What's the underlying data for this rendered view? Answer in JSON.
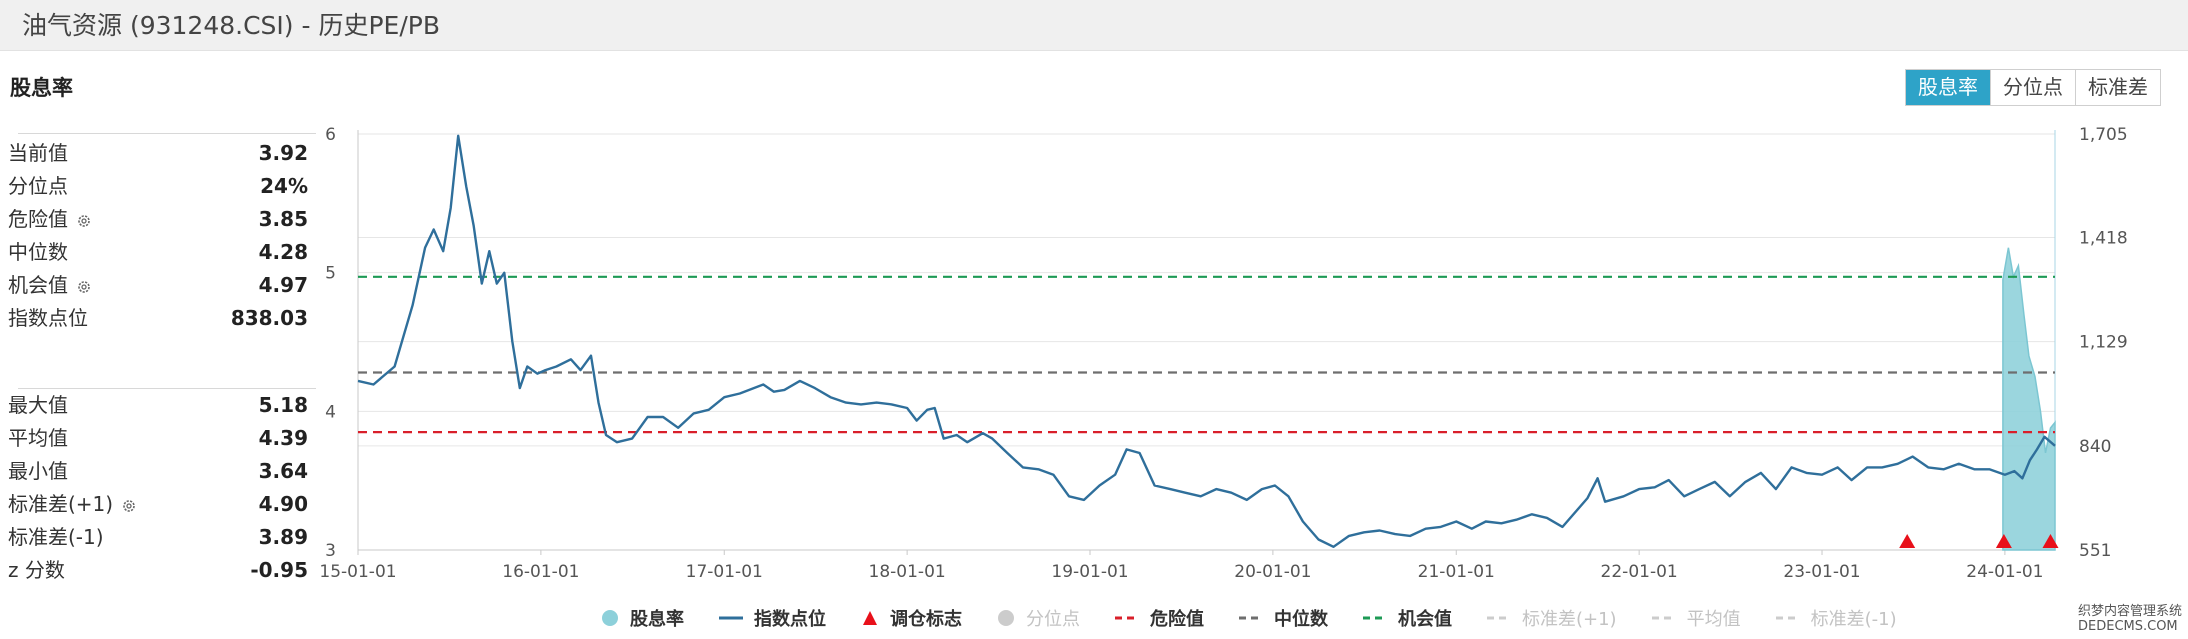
{
  "header": {
    "title": "油气资源 (931248.CSI) - 历史PE/PB"
  },
  "panel": {
    "title": "股息率",
    "metrics_top": [
      {
        "label": "当前值",
        "value": "3.92",
        "gear": false
      },
      {
        "label": "分位点",
        "value": "24%",
        "gear": false
      },
      {
        "label": "危险值",
        "value": "3.85",
        "gear": true
      },
      {
        "label": "中位数",
        "value": "4.28",
        "gear": false
      },
      {
        "label": "机会值",
        "value": "4.97",
        "gear": true
      },
      {
        "label": "指数点位",
        "value": "838.03",
        "gear": false
      }
    ],
    "metrics_bottom": [
      {
        "label": "最大值",
        "value": "5.18",
        "gear": false
      },
      {
        "label": "平均值",
        "value": "4.39",
        "gear": false
      },
      {
        "label": "最小值",
        "value": "3.64",
        "gear": false
      },
      {
        "label": "标准差(+1)",
        "value": "4.90",
        "gear": true
      },
      {
        "label": "标准差(-1)",
        "value": "3.89",
        "gear": false
      },
      {
        "label": "z 分数",
        "value": "-0.95",
        "gear": false
      }
    ]
  },
  "tabs": [
    {
      "label": "股息率",
      "active": true
    },
    {
      "label": "分位点",
      "active": false
    },
    {
      "label": "标准差",
      "active": false
    }
  ],
  "legend": [
    {
      "label": "股息率",
      "marker": "circle",
      "color": "#8dd0da",
      "active": true
    },
    {
      "label": "指数点位",
      "marker": "line",
      "color": "#2f6f9b",
      "active": true
    },
    {
      "label": "调仓标志",
      "marker": "triangle",
      "color": "#e8101a",
      "active": true
    },
    {
      "label": "分位点",
      "marker": "circle",
      "color": "#cccccc",
      "active": false
    },
    {
      "label": "危险值",
      "marker": "dash",
      "color": "#d91f2a",
      "active": true
    },
    {
      "label": "中位数",
      "marker": "dash",
      "color": "#6e6e6e",
      "active": true
    },
    {
      "label": "机会值",
      "marker": "dash",
      "color": "#1d9a55",
      "active": true
    },
    {
      "label": "标准差(+1)",
      "marker": "dash",
      "color": "#cccccc",
      "active": false
    },
    {
      "label": "平均值",
      "marker": "dash",
      "color": "#cccccc",
      "active": false
    },
    {
      "label": "标准差(-1)",
      "marker": "dash",
      "color": "#cccccc",
      "active": false
    }
  ],
  "watermark": {
    "line1": "织梦内容管理系统",
    "line2": "DEDECMS.COM"
  },
  "chart_data": {
    "type": "line",
    "x_axis": {
      "range": [
        "2015-01-01",
        "2024-04-10"
      ],
      "ticks": [
        "15-01-01",
        "16-01-01",
        "17-01-01",
        "18-01-01",
        "19-01-01",
        "20-01-01",
        "21-01-01",
        "22-01-01",
        "23-01-01",
        "24-01-01"
      ]
    },
    "y_left": {
      "range": [
        3,
        6
      ],
      "ticks": [
        "3",
        "4",
        "5",
        "6"
      ]
    },
    "y_right": {
      "range": [
        551,
        1705
      ],
      "ticks": [
        "551",
        "840",
        "1,129",
        "1,418",
        "1,705"
      ]
    },
    "grid": true,
    "reference_lines": [
      {
        "name": "危险值",
        "value": 3.85,
        "color": "#d91f2a"
      },
      {
        "name": "中位数",
        "value": 4.28,
        "color": "#6e6e6e"
      },
      {
        "name": "机会值",
        "value": 4.97,
        "color": "#1d9a55"
      }
    ],
    "series": [
      {
        "name": "指数点位",
        "axis": "right",
        "color": "#2f6f9b",
        "points": [
          [
            "2015-01-01",
            1020
          ],
          [
            "2015-02-01",
            1010
          ],
          [
            "2015-03-15",
            1060
          ],
          [
            "2015-04-20",
            1230
          ],
          [
            "2015-05-15",
            1390
          ],
          [
            "2015-06-01",
            1440
          ],
          [
            "2015-06-20",
            1380
          ],
          [
            "2015-07-05",
            1500
          ],
          [
            "2015-07-20",
            1700
          ],
          [
            "2015-08-05",
            1560
          ],
          [
            "2015-08-20",
            1450
          ],
          [
            "2015-09-05",
            1290
          ],
          [
            "2015-09-20",
            1380
          ],
          [
            "2015-10-05",
            1290
          ],
          [
            "2015-10-20",
            1320
          ],
          [
            "2015-11-05",
            1130
          ],
          [
            "2015-11-20",
            1000
          ],
          [
            "2015-12-05",
            1060
          ],
          [
            "2015-12-25",
            1040
          ],
          [
            "2016-01-10",
            1050
          ],
          [
            "2016-02-01",
            1060
          ],
          [
            "2016-03-01",
            1080
          ],
          [
            "2016-03-20",
            1050
          ],
          [
            "2016-04-10",
            1090
          ],
          [
            "2016-04-25",
            960
          ],
          [
            "2016-05-10",
            870
          ],
          [
            "2016-06-01",
            850
          ],
          [
            "2016-07-01",
            860
          ],
          [
            "2016-08-01",
            920
          ],
          [
            "2016-09-01",
            920
          ],
          [
            "2016-10-01",
            890
          ],
          [
            "2016-11-01",
            930
          ],
          [
            "2016-12-01",
            940
          ],
          [
            "2017-01-01",
            975
          ],
          [
            "2017-02-01",
            985
          ],
          [
            "2017-03-01",
            1000
          ],
          [
            "2017-03-20",
            1010
          ],
          [
            "2017-04-10",
            990
          ],
          [
            "2017-05-01",
            995
          ],
          [
            "2017-06-01",
            1020
          ],
          [
            "2017-07-01",
            1000
          ],
          [
            "2017-08-01",
            975
          ],
          [
            "2017-09-01",
            960
          ],
          [
            "2017-10-01",
            955
          ],
          [
            "2017-11-01",
            960
          ],
          [
            "2017-12-01",
            955
          ],
          [
            "2018-01-01",
            945
          ],
          [
            "2018-01-20",
            910
          ],
          [
            "2018-02-10",
            940
          ],
          [
            "2018-02-25",
            945
          ],
          [
            "2018-03-15",
            860
          ],
          [
            "2018-04-10",
            870
          ],
          [
            "2018-05-01",
            850
          ],
          [
            "2018-06-01",
            875
          ],
          [
            "2018-06-20",
            860
          ],
          [
            "2018-07-20",
            820
          ],
          [
            "2018-08-20",
            780
          ],
          [
            "2018-09-20",
            775
          ],
          [
            "2018-10-20",
            760
          ],
          [
            "2018-11-20",
            700
          ],
          [
            "2018-12-20",
            690
          ],
          [
            "2019-01-20",
            730
          ],
          [
            "2019-02-20",
            760
          ],
          [
            "2019-03-15",
            830
          ],
          [
            "2019-04-10",
            820
          ],
          [
            "2019-05-10",
            730
          ],
          [
            "2019-06-10",
            720
          ],
          [
            "2019-07-10",
            710
          ],
          [
            "2019-08-10",
            700
          ],
          [
            "2019-09-10",
            720
          ],
          [
            "2019-10-10",
            710
          ],
          [
            "2019-11-10",
            690
          ],
          [
            "2019-12-10",
            720
          ],
          [
            "2020-01-05",
            730
          ],
          [
            "2020-02-01",
            700
          ],
          [
            "2020-03-01",
            630
          ],
          [
            "2020-04-01",
            580
          ],
          [
            "2020-05-01",
            560
          ],
          [
            "2020-06-01",
            590
          ],
          [
            "2020-07-01",
            600
          ],
          [
            "2020-08-01",
            605
          ],
          [
            "2020-09-01",
            595
          ],
          [
            "2020-10-01",
            590
          ],
          [
            "2020-11-01",
            610
          ],
          [
            "2020-12-01",
            615
          ],
          [
            "2021-01-01",
            630
          ],
          [
            "2021-02-01",
            610
          ],
          [
            "2021-03-01",
            630
          ],
          [
            "2021-04-01",
            625
          ],
          [
            "2021-05-01",
            635
          ],
          [
            "2021-06-01",
            650
          ],
          [
            "2021-07-01",
            640
          ],
          [
            "2021-08-01",
            615
          ],
          [
            "2021-09-20",
            695
          ],
          [
            "2021-10-10",
            750
          ],
          [
            "2021-10-25",
            685
          ],
          [
            "2021-12-01",
            700
          ],
          [
            "2022-01-01",
            720
          ],
          [
            "2022-02-01",
            725
          ],
          [
            "2022-03-01",
            745
          ],
          [
            "2022-04-01",
            700
          ],
          [
            "2022-05-01",
            720
          ],
          [
            "2022-06-01",
            740
          ],
          [
            "2022-07-01",
            700
          ],
          [
            "2022-08-01",
            740
          ],
          [
            "2022-09-01",
            765
          ],
          [
            "2022-10-01",
            720
          ],
          [
            "2022-11-01",
            780
          ],
          [
            "2022-12-01",
            765
          ],
          [
            "2023-01-01",
            760
          ],
          [
            "2023-02-01",
            780
          ],
          [
            "2023-03-01",
            745
          ],
          [
            "2023-04-01",
            780
          ],
          [
            "2023-05-01",
            780
          ],
          [
            "2023-06-01",
            790
          ],
          [
            "2023-07-01",
            810
          ],
          [
            "2023-08-01",
            780
          ],
          [
            "2023-09-01",
            775
          ],
          [
            "2023-10-01",
            790
          ],
          [
            "2023-11-01",
            775
          ],
          [
            "2023-12-01",
            775
          ],
          [
            "2024-01-01",
            760
          ],
          [
            "2024-01-20",
            770
          ],
          [
            "2024-02-05",
            750
          ],
          [
            "2024-02-20",
            800
          ],
          [
            "2024-03-05",
            830
          ],
          [
            "2024-03-20",
            865
          ],
          [
            "2024-04-10",
            840
          ]
        ]
      },
      {
        "name": "股息率",
        "axis": "left",
        "color": "#8dd0da",
        "points": [
          [
            "2023-12-28",
            3.0
          ],
          [
            "2023-12-28",
            4.95
          ],
          [
            "2024-01-08",
            5.18
          ],
          [
            "2024-01-18",
            4.97
          ],
          [
            "2024-01-28",
            5.05
          ],
          [
            "2024-02-08",
            4.7
          ],
          [
            "2024-02-18",
            4.4
          ],
          [
            "2024-03-01",
            4.25
          ],
          [
            "2024-03-12",
            4.0
          ],
          [
            "2024-03-22",
            3.7
          ],
          [
            "2024-04-01",
            3.88
          ],
          [
            "2024-04-10",
            3.92
          ],
          [
            "2024-04-10",
            3.0
          ]
        ]
      },
      {
        "name": "调仓标志",
        "axis": "none",
        "color": "#e8101a",
        "points": [
          "2023-06-20",
          "2023-12-30",
          "2024-04-01"
        ]
      }
    ]
  }
}
